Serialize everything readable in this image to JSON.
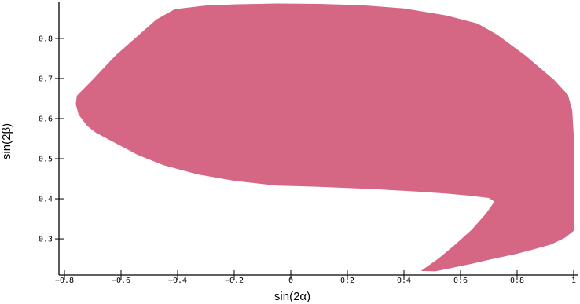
{
  "chart_data": {
    "type": "area",
    "title": "",
    "xlabel": "sin(2α)",
    "ylabel": "sin(2β)",
    "xlim": [
      -0.8,
      1.0
    ],
    "ylim": [
      0.21,
      0.89
    ],
    "x_ticks": [
      -0.8,
      -0.6,
      -0.4,
      -0.2,
      0,
      0.2,
      0.4,
      0.6,
      0.8,
      1
    ],
    "x_tick_labels": [
      "−0.8",
      "−0.6",
      "−0.4",
      "−0.2",
      "0",
      "0.2",
      "0.4",
      "0.6",
      "0.8",
      "1"
    ],
    "y_ticks": [
      0.3,
      0.4,
      0.5,
      0.6,
      0.7,
      0.8
    ],
    "y_tick_labels": [
      "0.3",
      "0.4",
      "0.5",
      "0.6",
      "0.7",
      "0.8"
    ],
    "grid": false,
    "fill_color": "#d56684",
    "region": [
      {
        "x": -0.756,
        "y": 0.657
      },
      {
        "x": -0.71,
        "y": 0.69
      },
      {
        "x": -0.62,
        "y": 0.757
      },
      {
        "x": -0.53,
        "y": 0.813
      },
      {
        "x": -0.475,
        "y": 0.847
      },
      {
        "x": -0.41,
        "y": 0.873
      },
      {
        "x": -0.3,
        "y": 0.882
      },
      {
        "x": -0.2,
        "y": 0.885
      },
      {
        "x": -0.05,
        "y": 0.887
      },
      {
        "x": 0.1,
        "y": 0.886
      },
      {
        "x": 0.25,
        "y": 0.883
      },
      {
        "x": 0.4,
        "y": 0.875
      },
      {
        "x": 0.55,
        "y": 0.857
      },
      {
        "x": 0.66,
        "y": 0.837
      },
      {
        "x": 0.73,
        "y": 0.809
      },
      {
        "x": 0.83,
        "y": 0.757
      },
      {
        "x": 0.93,
        "y": 0.697
      },
      {
        "x": 0.98,
        "y": 0.659
      },
      {
        "x": 0.995,
        "y": 0.62
      },
      {
        "x": 1.0,
        "y": 0.56
      },
      {
        "x": 1.0,
        "y": 0.42
      },
      {
        "x": 1.0,
        "y": 0.32
      },
      {
        "x": 0.97,
        "y": 0.303
      },
      {
        "x": 0.92,
        "y": 0.286
      },
      {
        "x": 0.87,
        "y": 0.276
      },
      {
        "x": 0.8,
        "y": 0.263
      },
      {
        "x": 0.72,
        "y": 0.251
      },
      {
        "x": 0.64,
        "y": 0.238
      },
      {
        "x": 0.56,
        "y": 0.226
      },
      {
        "x": 0.51,
        "y": 0.219
      },
      {
        "x": 0.46,
        "y": 0.22
      },
      {
        "x": 0.52,
        "y": 0.25
      },
      {
        "x": 0.58,
        "y": 0.285
      },
      {
        "x": 0.64,
        "y": 0.323
      },
      {
        "x": 0.69,
        "y": 0.363
      },
      {
        "x": 0.72,
        "y": 0.393
      },
      {
        "x": 0.7,
        "y": 0.402
      },
      {
        "x": 0.63,
        "y": 0.408
      },
      {
        "x": 0.55,
        "y": 0.413
      },
      {
        "x": 0.45,
        "y": 0.418
      },
      {
        "x": 0.3,
        "y": 0.424
      },
      {
        "x": 0.1,
        "y": 0.43
      },
      {
        "x": -0.05,
        "y": 0.433
      },
      {
        "x": -0.2,
        "y": 0.445
      },
      {
        "x": -0.33,
        "y": 0.461
      },
      {
        "x": -0.45,
        "y": 0.484
      },
      {
        "x": -0.54,
        "y": 0.509
      },
      {
        "x": -0.62,
        "y": 0.539
      },
      {
        "x": -0.69,
        "y": 0.565
      },
      {
        "x": -0.72,
        "y": 0.582
      },
      {
        "x": -0.75,
        "y": 0.61
      },
      {
        "x": -0.76,
        "y": 0.636
      }
    ]
  }
}
